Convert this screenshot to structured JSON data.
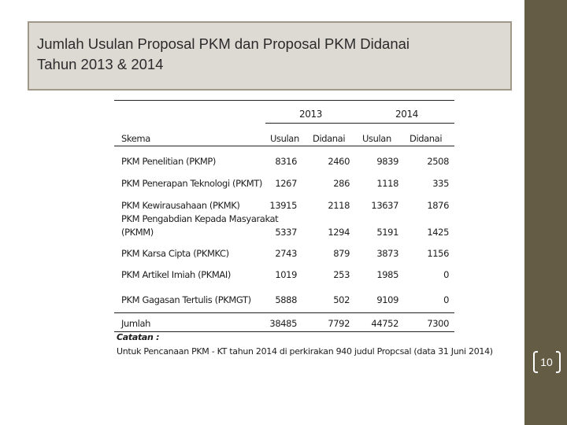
{
  "title": {
    "line1": "Jumlah Usulan Proposal PKM dan Proposal PKM Didanai",
    "line2": "Tahun 2013 & 2014"
  },
  "table": {
    "years": [
      "2013",
      "2014"
    ],
    "headers": {
      "skema": "Skema",
      "usulan_2013": "Usulan",
      "didanai_2013": "Didanai",
      "usulan_2014": "Usulan",
      "didanai_2014": "Didanai"
    },
    "rows": [
      {
        "skema": "PKM Penelitian (PKMP)",
        "u13": "8316",
        "d13": "2460",
        "u14": "9839",
        "d14": "2508"
      },
      {
        "skema": "PKM Penerapan Teknologi (PKMT)",
        "u13": "1267",
        "d13": "286",
        "u14": "1118",
        "d14": "335"
      },
      {
        "skema": "PKM Kewirausahaan (PKMK)",
        "u13": "13915",
        "d13": "2118",
        "u14": "13637",
        "d14": "1876"
      },
      {
        "skema": "PKM Pengabdian Kepada Masyarakat",
        "skema2": "(PKMM)",
        "u13": "5337",
        "d13": "1294",
        "u14": "5191",
        "d14": "1425"
      },
      {
        "skema": "PKM Karsa Cipta (PKMKC)",
        "u13": "2743",
        "d13": "879",
        "u14": "3873",
        "d14": "1156"
      },
      {
        "skema": "PKM Artikel Imiah (PKMAI)",
        "u13": "1019",
        "d13": "253",
        "u14": "1985",
        "d14": "0"
      },
      {
        "skema": "PKM Gagasan Tertulis (PKMGT)",
        "u13": "5888",
        "d13": "502",
        "u14": "9109",
        "d14": "0"
      }
    ],
    "total": {
      "skema": "Jumlah",
      "u13": "38485",
      "d13": "7792",
      "u14": "44752",
      "d14": "7300"
    },
    "note_label": "Catatan :",
    "note_text": "Untuk Pencanaan PKM - KT tahun 2014 di perkirakan 940 judul Propcsal (data 31 Juni 2014)"
  },
  "page_number": "10"
}
